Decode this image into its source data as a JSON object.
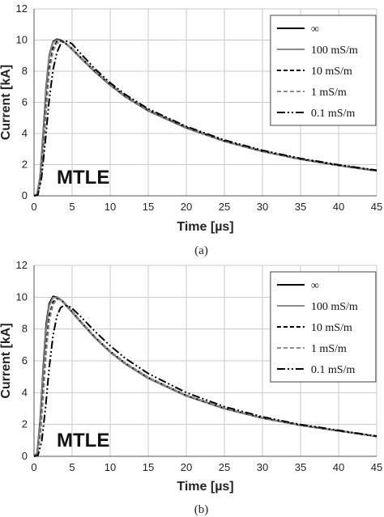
{
  "chart_data": [
    {
      "type": "line",
      "panel_caption": "(a)",
      "annotation": "MTLE",
      "xlabel": "Time [µs]",
      "ylabel": "Current [kA]",
      "xlim": [
        0,
        45
      ],
      "ylim": [
        0,
        12
      ],
      "xticks": [
        "0",
        "5",
        "10",
        "15",
        "20",
        "25",
        "30",
        "35",
        "40",
        "45"
      ],
      "yticks": [
        "0",
        "2",
        "4",
        "6",
        "8",
        "10",
        "12"
      ],
      "grid": true,
      "legend_position": "top-right",
      "series": [
        {
          "name": "∞",
          "color": "#000000",
          "dash": "",
          "x": [
            0,
            0.4,
            0.8,
            1.2,
            1.6,
            2.0,
            2.5,
            3.0,
            3.5,
            4,
            5,
            6,
            8,
            10,
            12,
            15,
            20,
            25,
            30,
            35,
            40,
            45
          ],
          "y": [
            0,
            0.1,
            1.2,
            4.0,
            7.0,
            9.0,
            9.9,
            10.05,
            10.0,
            9.85,
            9.4,
            8.9,
            7.95,
            7.1,
            6.35,
            5.45,
            4.35,
            3.5,
            2.85,
            2.35,
            1.95,
            1.6
          ]
        },
        {
          "name": "100 mS/m",
          "color": "#8a8a8a",
          "dash": "",
          "x": [
            0,
            0.4,
            0.8,
            1.2,
            1.6,
            2.0,
            2.5,
            3.0,
            3.5,
            4,
            5,
            6,
            8,
            10,
            12,
            15,
            20,
            25,
            30,
            35,
            40,
            45
          ],
          "y": [
            0,
            0.1,
            1.1,
            3.8,
            6.8,
            8.9,
            9.85,
            10.0,
            9.97,
            9.85,
            9.4,
            8.9,
            7.95,
            7.1,
            6.35,
            5.45,
            4.35,
            3.5,
            2.85,
            2.35,
            1.95,
            1.6
          ]
        },
        {
          "name": "10 mS/m",
          "color": "#000000",
          "dash": "5,3",
          "x": [
            0,
            0.4,
            0.8,
            1.2,
            1.6,
            2.0,
            2.5,
            3.0,
            3.5,
            4,
            5,
            6,
            8,
            10,
            12,
            15,
            20,
            25,
            30,
            35,
            40,
            45
          ],
          "y": [
            0,
            0.05,
            0.7,
            2.9,
            5.8,
            8.2,
            9.5,
            9.9,
            9.95,
            9.85,
            9.45,
            8.95,
            8.0,
            7.15,
            6.4,
            5.5,
            4.4,
            3.52,
            2.87,
            2.36,
            1.96,
            1.62
          ]
        },
        {
          "name": "1 mS/m",
          "color": "#8a8a8a",
          "dash": "5,3",
          "x": [
            0,
            0.4,
            0.8,
            1.2,
            1.6,
            2.0,
            2.5,
            3.0,
            3.5,
            4,
            5,
            6,
            8,
            10,
            12,
            15,
            20,
            25,
            30,
            35,
            40,
            45
          ],
          "y": [
            0,
            0.04,
            0.6,
            2.6,
            5.4,
            7.9,
            9.3,
            9.8,
            9.9,
            9.85,
            9.47,
            8.97,
            8.02,
            7.17,
            6.42,
            5.52,
            4.42,
            3.53,
            2.88,
            2.37,
            1.97,
            1.62
          ]
        },
        {
          "name": "0.1 mS/m",
          "color": "#000000",
          "dash": "10,3,2,3,2,3",
          "x": [
            0,
            0.5,
            1.0,
            1.5,
            2.0,
            2.5,
            3.0,
            3.5,
            4,
            4.5,
            5,
            6,
            8,
            10,
            12,
            15,
            20,
            25,
            30,
            35,
            40,
            45
          ],
          "y": [
            0,
            0.05,
            1.2,
            3.6,
            6.2,
            8.1,
            9.2,
            9.75,
            9.95,
            9.9,
            9.75,
            9.2,
            8.15,
            7.25,
            6.5,
            5.58,
            4.45,
            3.58,
            2.92,
            2.4,
            1.99,
            1.64
          ]
        }
      ]
    },
    {
      "type": "line",
      "panel_caption": "(b)",
      "annotation": "MTLE",
      "xlabel": "Time [µs]",
      "ylabel": "Current [kA]",
      "xlim": [
        0,
        45
      ],
      "ylim": [
        0,
        12
      ],
      "xticks": [
        "0",
        "5",
        "10",
        "15",
        "20",
        "25",
        "30",
        "35",
        "40",
        "45"
      ],
      "yticks": [
        "0",
        "2",
        "4",
        "6",
        "8",
        "10",
        "12"
      ],
      "grid": true,
      "legend_position": "top-right",
      "series": [
        {
          "name": "∞",
          "color": "#000000",
          "dash": "",
          "x": [
            0,
            0.4,
            0.8,
            1.2,
            1.6,
            2.0,
            2.5,
            3.0,
            3.5,
            4,
            5,
            6,
            8,
            10,
            12,
            15,
            20,
            25,
            30,
            35,
            40,
            45
          ],
          "y": [
            0,
            0.2,
            2.2,
            5.5,
            8.3,
            9.6,
            10.05,
            10.0,
            9.85,
            9.6,
            9.05,
            8.5,
            7.45,
            6.55,
            5.8,
            4.9,
            3.8,
            3.0,
            2.4,
            1.95,
            1.6,
            1.25
          ]
        },
        {
          "name": "100 mS/m",
          "color": "#8a8a8a",
          "dash": "",
          "x": [
            0,
            0.4,
            0.8,
            1.2,
            1.6,
            2.0,
            2.5,
            3.0,
            3.5,
            4,
            5,
            6,
            8,
            10,
            12,
            15,
            20,
            25,
            30,
            35,
            40,
            45
          ],
          "y": [
            0,
            0.18,
            2.0,
            5.2,
            8.0,
            9.45,
            9.98,
            9.98,
            9.85,
            9.6,
            9.05,
            8.5,
            7.45,
            6.55,
            5.8,
            4.9,
            3.8,
            3.0,
            2.4,
            1.95,
            1.6,
            1.25
          ]
        },
        {
          "name": "10 mS/m",
          "color": "#000000",
          "dash": "5,3",
          "x": [
            0,
            0.4,
            0.8,
            1.2,
            1.6,
            2.0,
            2.5,
            3.0,
            3.5,
            4,
            5,
            6,
            8,
            10,
            12,
            15,
            20,
            25,
            30,
            35,
            40,
            45
          ],
          "y": [
            0,
            0.1,
            1.3,
            4.0,
            6.9,
            8.8,
            9.7,
            9.9,
            9.85,
            9.65,
            9.1,
            8.55,
            7.5,
            6.6,
            5.85,
            4.95,
            3.83,
            3.02,
            2.42,
            1.96,
            1.6,
            1.25
          ]
        },
        {
          "name": "1 mS/m",
          "color": "#8a8a8a",
          "dash": "5,3",
          "x": [
            0,
            0.4,
            0.8,
            1.2,
            1.6,
            2.0,
            2.5,
            3.0,
            3.5,
            4,
            5,
            6,
            8,
            10,
            12,
            15,
            20,
            25,
            30,
            35,
            40,
            45
          ],
          "y": [
            0,
            0.08,
            1.1,
            3.6,
            6.5,
            8.5,
            9.55,
            9.85,
            9.85,
            9.65,
            9.12,
            8.57,
            7.52,
            6.62,
            5.87,
            4.97,
            3.85,
            3.03,
            2.43,
            1.97,
            1.61,
            1.26
          ]
        },
        {
          "name": "0.1 mS/m",
          "color": "#000000",
          "dash": "10,3,2,3,2,3",
          "x": [
            0,
            0.5,
            1.0,
            1.5,
            2.0,
            2.5,
            3.0,
            3.5,
            4,
            4.5,
            5,
            6,
            8,
            10,
            12,
            15,
            20,
            25,
            30,
            35,
            40,
            45
          ],
          "y": [
            0,
            0.05,
            0.9,
            3.0,
            5.6,
            7.6,
            8.8,
            9.35,
            9.5,
            9.45,
            9.3,
            8.85,
            7.85,
            6.95,
            6.15,
            5.2,
            4.0,
            3.12,
            2.48,
            2.0,
            1.63,
            1.27
          ]
        }
      ]
    }
  ]
}
